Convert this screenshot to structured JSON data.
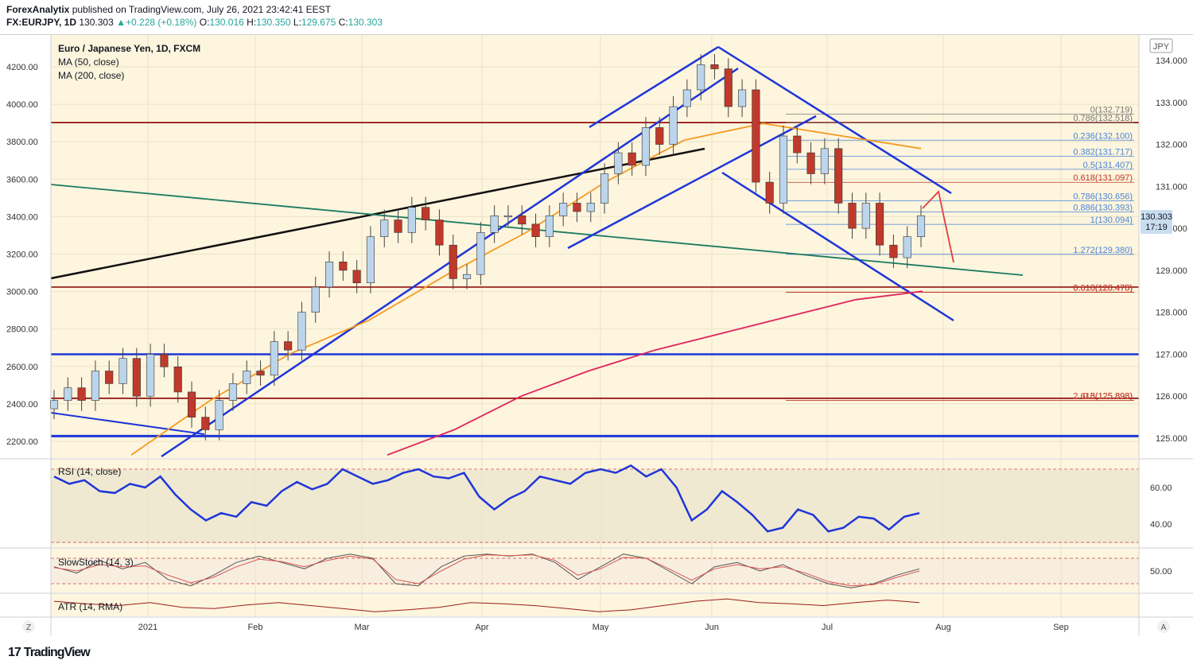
{
  "header": {
    "author": "ForexAnalytix",
    "published_text": " published on TradingView.com, July 26, 2021 23:42:41 EEST",
    "symbol": "FX:EURJPY, 1D",
    "last": "130.303",
    "change": "+0.228 (+0.18%)",
    "o_label": "O:",
    "o": "130.016",
    "h_label": "H:",
    "h": "130.350",
    "l_label": "L:",
    "l": "129.675",
    "c_label": "C:",
    "c": "130.303"
  },
  "legend": {
    "main": "Euro / Japanese Yen, 1D, FXCM",
    "ma50": "MA (50, close)",
    "ma200": "MA (200, close)",
    "rsi": "RSI (14, close)",
    "stoch": "SlowStoch (14, 3)",
    "atr": "ATR (14, RMA)"
  },
  "currency": "JPY",
  "price_badge": {
    "price": "130.303",
    "countdown": "17:19"
  },
  "corner_left": "Z",
  "corner_right": "A",
  "brand": {
    "mark": "17",
    "name": "TradingView"
  },
  "colors": {
    "background": "#fdf5dd",
    "up": "#bcd5ec",
    "down": "#c0392b",
    "ma50": "#f59a23",
    "ma200": "#e0245e",
    "rsi": "#1f35d8",
    "stoch_k": "#555555",
    "stoch_d": "#d9534f",
    "atr": "#9b1c1c",
    "trend": "#1f35d8",
    "fib": "#4a84d9",
    "resist": "#8b0000"
  },
  "chart_data": [
    {
      "type": "candlestick",
      "title": "Euro / Japanese Yen, 1D, FXCM",
      "symbol": "FX:EURJPY",
      "timeframe": "1D",
      "left_axis": {
        "ticks": [
          2200,
          2400,
          2600,
          2800,
          3000,
          3200,
          3400,
          3600,
          3800,
          4000,
          4200
        ],
        "labels": [
          "2200.00",
          "2400.00",
          "2600.00",
          "2800.00",
          "3000.00",
          "3200.00",
          "3400.00",
          "3600.00",
          "3800.00",
          "4000.00",
          "4200.00"
        ]
      },
      "right_axis": {
        "ticks": [
          125,
          126,
          127,
          128,
          129,
          130,
          131,
          132,
          133,
          134
        ],
        "labels": [
          "125.000",
          "126.000",
          "127.000",
          "128.000",
          "129.000",
          "130.000",
          "131.000",
          "132.000",
          "133.000",
          "134.000"
        ],
        "range": [
          124.5,
          134.6
        ]
      },
      "x_axis": {
        "labels": [
          "2021",
          "Feb",
          "Mar",
          "Apr",
          "May",
          "Jun",
          "Jul",
          "Aug",
          "Sep"
        ]
      },
      "series": [
        {
          "name": "MA (50, close)",
          "values": [
            124.6,
            125.9,
            127.0,
            127.8,
            128.9,
            129.9,
            131.1,
            132.1,
            132.5,
            132.2,
            131.9
          ]
        },
        {
          "name": "MA (200, close)",
          "values": [
            124.6,
            125.2,
            126.0,
            126.6,
            127.1,
            127.5,
            127.9,
            128.3,
            128.5
          ]
        }
      ],
      "fibonacci": [
        {
          "label": "0(132.719)",
          "value": 132.719
        },
        {
          "label": "0.786(132.518)",
          "value": 132.518
        },
        {
          "label": "0.236(132.100)",
          "value": 132.1
        },
        {
          "label": "0.382(131.717)",
          "value": 131.717
        },
        {
          "label": "0.5(131.407)",
          "value": 131.407
        },
        {
          "label": "0.618(131.097)",
          "value": 131.097
        },
        {
          "label": "0.786(130.656)",
          "value": 130.656
        },
        {
          "label": "0.886(130.393)",
          "value": 130.393
        },
        {
          "label": "1(130.094)",
          "value": 130.094
        },
        {
          "label": "1.272(129.380)",
          "value": 129.38
        },
        {
          "label": "0.618(128.475)",
          "value": 128.475
        },
        {
          "label": "0.618(128.478)",
          "value": 128.478
        },
        {
          "label": "2.618(125.898)",
          "value": 125.898
        },
        {
          "label": "0.5(125.898)",
          "value": 125.898
        }
      ],
      "horizontal_levels": [
        132.518,
        128.6,
        127.0,
        125.95,
        125.05
      ],
      "ohlc_close_path": [
        125.9,
        126.2,
        125.9,
        126.6,
        126.3,
        126.9,
        126.0,
        127.0,
        126.7,
        126.1,
        125.5,
        125.2,
        125.9,
        126.3,
        126.6,
        126.5,
        127.3,
        127.1,
        128.0,
        128.6,
        129.2,
        129.0,
        128.7,
        129.8,
        130.2,
        129.9,
        130.5,
        130.2,
        129.6,
        128.8,
        128.9,
        129.9,
        130.3,
        130.3,
        130.1,
        129.8,
        130.3,
        130.6,
        130.4,
        130.6,
        131.3,
        131.8,
        131.5,
        132.4,
        132.0,
        132.9,
        133.3,
        133.9,
        133.8,
        132.9,
        133.3,
        131.1,
        130.6,
        132.2,
        131.8,
        131.3,
        131.9,
        130.6,
        130.0,
        130.6,
        129.6,
        129.3,
        129.8,
        130.3
      ]
    },
    {
      "type": "line",
      "name": "RSI (14, close)",
      "y_axis": {
        "ticks": [
          40,
          60
        ],
        "labels": [
          "40.00",
          "60.00"
        ],
        "bands": [
          30,
          70
        ]
      },
      "values": [
        66,
        62,
        64,
        58,
        57,
        62,
        60,
        66,
        56,
        48,
        42,
        46,
        44,
        52,
        50,
        58,
        63,
        59,
        62,
        70,
        66,
        62,
        64,
        68,
        70,
        66,
        65,
        68,
        55,
        48,
        54,
        58,
        66,
        64,
        62,
        68,
        70,
        68,
        72,
        66,
        70,
        60,
        42,
        48,
        58,
        52,
        45,
        36,
        38,
        48,
        45,
        36,
        38,
        44,
        43,
        37,
        44,
        46
      ]
    },
    {
      "type": "line",
      "name": "SlowStoch (14, 3)",
      "y_axis": {
        "ticks": [
          50
        ],
        "labels": [
          "50.00"
        ],
        "bands": [
          20,
          80
        ]
      },
      "series": [
        {
          "name": "%K",
          "values": [
            60,
            45,
            75,
            55,
            70,
            30,
            15,
            40,
            70,
            85,
            70,
            55,
            80,
            90,
            80,
            20,
            15,
            60,
            85,
            90,
            85,
            90,
            70,
            30,
            60,
            90,
            80,
            50,
            20,
            60,
            70,
            50,
            65,
            40,
            20,
            10,
            20,
            40,
            55
          ]
        },
        {
          "name": "%D",
          "values": [
            58,
            50,
            65,
            60,
            62,
            40,
            22,
            35,
            60,
            78,
            72,
            60,
            75,
            85,
            78,
            30,
            20,
            50,
            78,
            88,
            86,
            88,
            75,
            40,
            55,
            82,
            80,
            55,
            28,
            55,
            65,
            55,
            60,
            45,
            25,
            15,
            18,
            35,
            50
          ]
        }
      ]
    },
    {
      "type": "line",
      "name": "ATR (14, RMA)",
      "values": [
        0.62,
        0.58,
        0.55,
        0.6,
        0.52,
        0.5,
        0.56,
        0.6,
        0.55,
        0.5,
        0.45,
        0.48,
        0.52,
        0.6,
        0.58,
        0.55,
        0.5,
        0.45,
        0.48,
        0.55,
        0.62,
        0.66,
        0.6,
        0.58,
        0.55,
        0.6,
        0.64,
        0.6
      ]
    }
  ]
}
